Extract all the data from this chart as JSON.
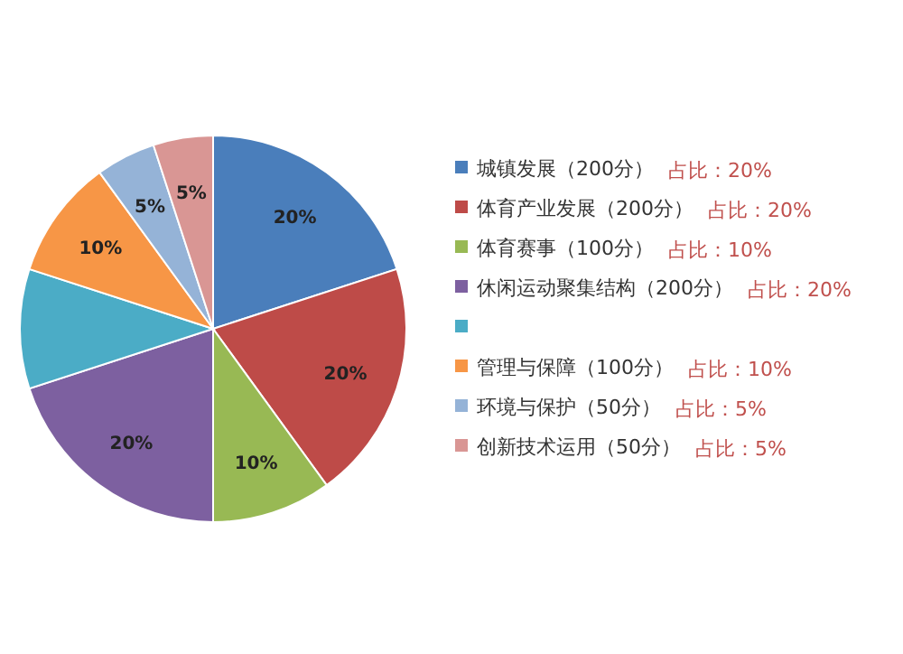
{
  "chart_data": {
    "type": "pie",
    "legend": "right",
    "categories": [
      "城镇发展（200分）",
      "体育产业发展（200分）",
      "体育赛事（100分）",
      "休闲运动聚集结构（200分）",
      null,
      "管理与保障（100分）",
      "环境与保护（50分）",
      "创新技术运用（50分）"
    ],
    "values": [
      20,
      20,
      10,
      20,
      10,
      10,
      5,
      5
    ],
    "colors": [
      "#4a7ebb",
      "#be4b48",
      "#98b954",
      "#7d60a0",
      "#4bacc6",
      "#f79646",
      "#95b3d7",
      "#d99694"
    ],
    "value_labels": [
      "20%",
      "20%",
      "10%",
      "20%",
      null,
      "10%",
      "5%",
      "5%"
    ],
    "annotations": [
      "占比：20%",
      "占比：20%",
      "占比：10%",
      "占比：20%",
      "占比：10%",
      "占比：5%",
      "占比：5%"
    ]
  }
}
